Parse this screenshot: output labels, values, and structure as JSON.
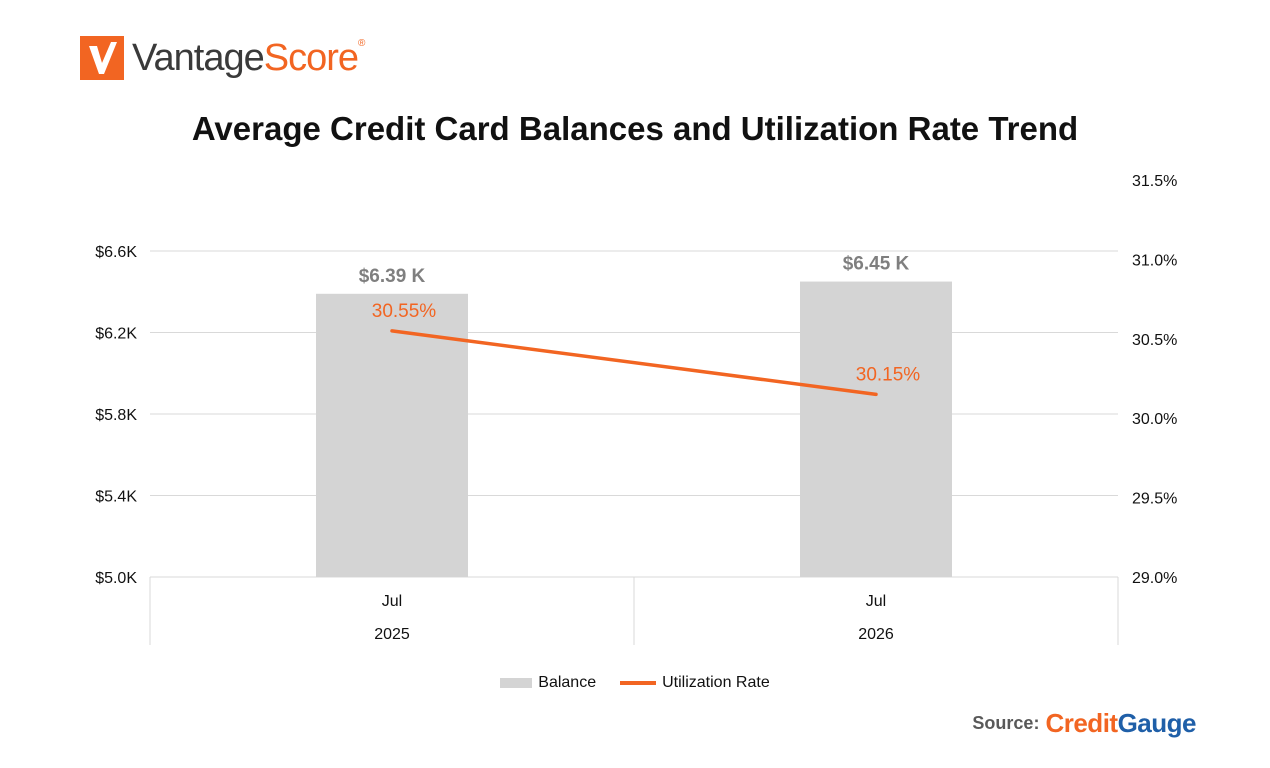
{
  "brand": {
    "name_part1": "Vantage",
    "name_part2": "Score",
    "mark": "®",
    "icon": "vantagescore-logo-icon"
  },
  "source": {
    "label": "Source:",
    "brand_part1": "Credit",
    "brand_part2": "Gauge",
    "icon": "creditgauge-logo"
  },
  "colors": {
    "accent": "#f26522",
    "bar": "#d4d4d4",
    "gridline": "#d9d9d9",
    "source_blue": "#1f5fa8"
  },
  "chart_data": {
    "type": "bar",
    "title": "Average Credit Card Balances and Utilization Rate Trend",
    "categories": [
      {
        "month": "Jul",
        "year": "2025"
      },
      {
        "month": "Jul",
        "year": "2026"
      }
    ],
    "left_axis": {
      "ticks": [
        "$5.0K",
        "$5.4K",
        "$5.8K",
        "$6.2K",
        "$6.6K"
      ],
      "ylim": [
        5.0,
        6.6
      ],
      "unit": "$K"
    },
    "right_axis": {
      "ticks": [
        "29.0%",
        "29.5%",
        "30.0%",
        "30.5%",
        "31.0%",
        "31.5%"
      ],
      "ylim": [
        29.0,
        31.5
      ],
      "unit": "%"
    },
    "grid": true,
    "legend_position": "bottom",
    "series": [
      {
        "name": "Balance",
        "type": "bar",
        "axis": "left",
        "values": [
          6.39,
          6.45
        ],
        "labels": [
          "$6.39 K",
          "$6.45 K"
        ],
        "color": "#d4d4d4"
      },
      {
        "name": "Utilization Rate",
        "type": "line",
        "axis": "right",
        "values": [
          30.55,
          30.15
        ],
        "labels": [
          "30.55%",
          "30.15%"
        ],
        "color": "#f26522"
      }
    ]
  }
}
